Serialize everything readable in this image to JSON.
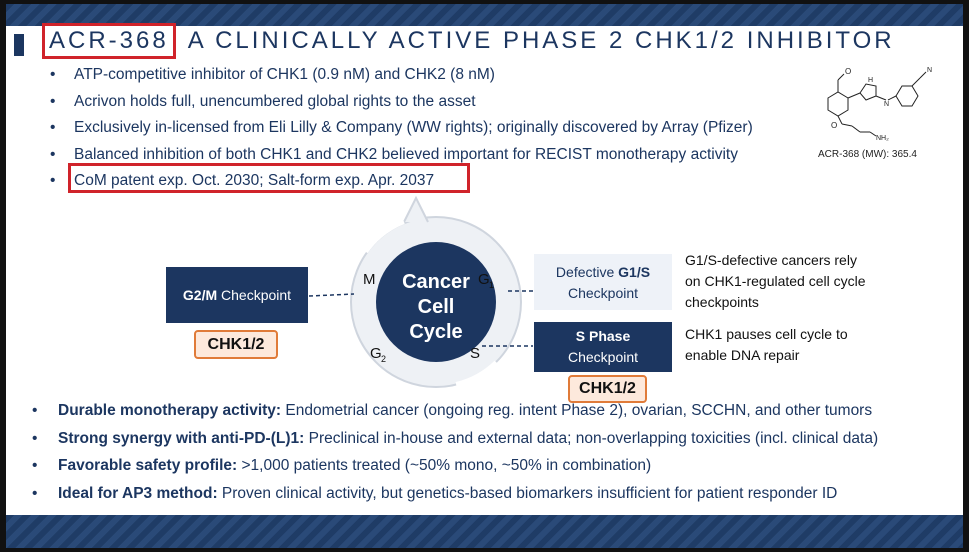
{
  "title": {
    "code": "ACR-368",
    "rest": "A CLINICALLY ACTIVE PHASE 2 CHK1/2 INHIBITOR"
  },
  "top_bullets": [
    "ATP-competitive inhibitor of CHK1 (0.9 nM) and CHK2 (8 nM)",
    "Acrivon holds full, unencumbered global rights to the asset",
    "Exclusively in-licensed from Eli Lilly & Company (WW rights); originally discovered by Array (Pfizer)",
    "Balanced inhibition of both CHK1 and CHK2 believed important for RECIST monotherapy activity",
    "CoM patent exp. Oct. 2030; Salt-form exp. Apr. 2037"
  ],
  "molecule": {
    "caption": "ACR-368 (MW): 365.4",
    "nh2_label": "NH₂",
    "n_label": "N",
    "h_label": "H",
    "cn_label": "N"
  },
  "cycle": {
    "line1": "Cancer",
    "line2": "Cell",
    "line3": "Cycle",
    "m": "M",
    "g1": "G",
    "g1_sub": "1",
    "g2": "G",
    "g2_sub": "2",
    "s": "S"
  },
  "g2m": {
    "bold": "G2/M",
    "rest": "Checkpoint"
  },
  "chk_left": "CHK1/2",
  "g1s": {
    "prefix": "Defective ",
    "bold": "G1/S",
    "line2": "Checkpoint"
  },
  "sphase": {
    "line1": "S Phase",
    "line2": "Checkpoint"
  },
  "chk_right": "CHK1/2",
  "note1": "G1/S-defective cancers rely on CHK1-regulated cell cycle checkpoints",
  "note2": "CHK1 pauses cell cycle to enable DNA repair",
  "bottom_bullets": [
    {
      "bold": "Durable monotherapy activity:",
      "text": " Endometrial cancer (ongoing reg. intent Phase 2), ovarian, SCCHN, and other tumors"
    },
    {
      "bold": "Strong synergy with anti-PD-(L)1:",
      "text": " Preclinical in-house and external data; non-overlapping toxicities (incl. clinical data)"
    },
    {
      "bold": "Favorable safety profile:",
      "text": " >1,000 patients treated (~50% mono, ~50% in combination)"
    },
    {
      "bold": "Ideal for AP3 method:",
      "text": " Proven clinical activity, but genetics-based biomarkers insufficient for patient responder ID"
    }
  ],
  "colors": {
    "navy": "#1c3660",
    "highlight_red": "#d0232a",
    "orange": "#e07b39",
    "cycle_gray": "#d7dce3"
  }
}
